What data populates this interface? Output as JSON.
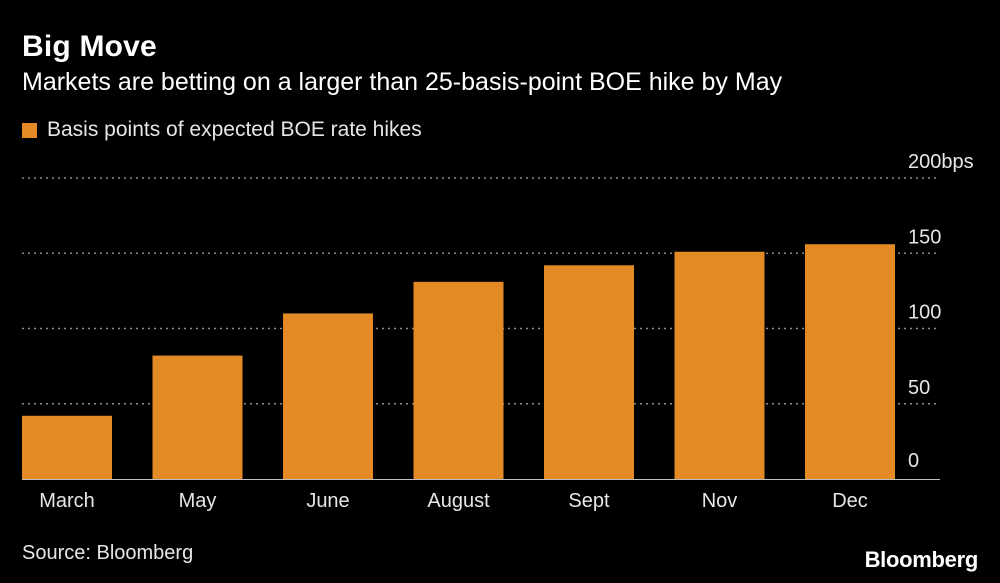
{
  "colors": {
    "bar": "#e38a24",
    "grid": "#8a8a8a",
    "text": "#e6e6e6"
  },
  "brand": "Bloomberg",
  "source": "Source: Bloomberg",
  "legend_label": "Basis points of expected BOE rate hikes",
  "chart_data": {
    "type": "bar",
    "title": "Big Move",
    "subtitle": "Markets are betting on a larger than 25-basis-point BOE hike by May",
    "categories": [
      "March",
      "May",
      "June",
      "August",
      "Sept",
      "Nov",
      "Dec"
    ],
    "series": [
      {
        "name": "Basis points of expected BOE rate hikes",
        "values": [
          42,
          82,
          110,
          131,
          142,
          151,
          156
        ]
      }
    ],
    "ylim": [
      0,
      200
    ],
    "yticks": [
      {
        "value": 0,
        "label": "0"
      },
      {
        "value": 50,
        "label": "50"
      },
      {
        "value": 100,
        "label": "100"
      },
      {
        "value": 150,
        "label": "150"
      },
      {
        "value": 200,
        "label": "200bps"
      }
    ],
    "grid": true,
    "xlabel": "",
    "ylabel": ""
  }
}
